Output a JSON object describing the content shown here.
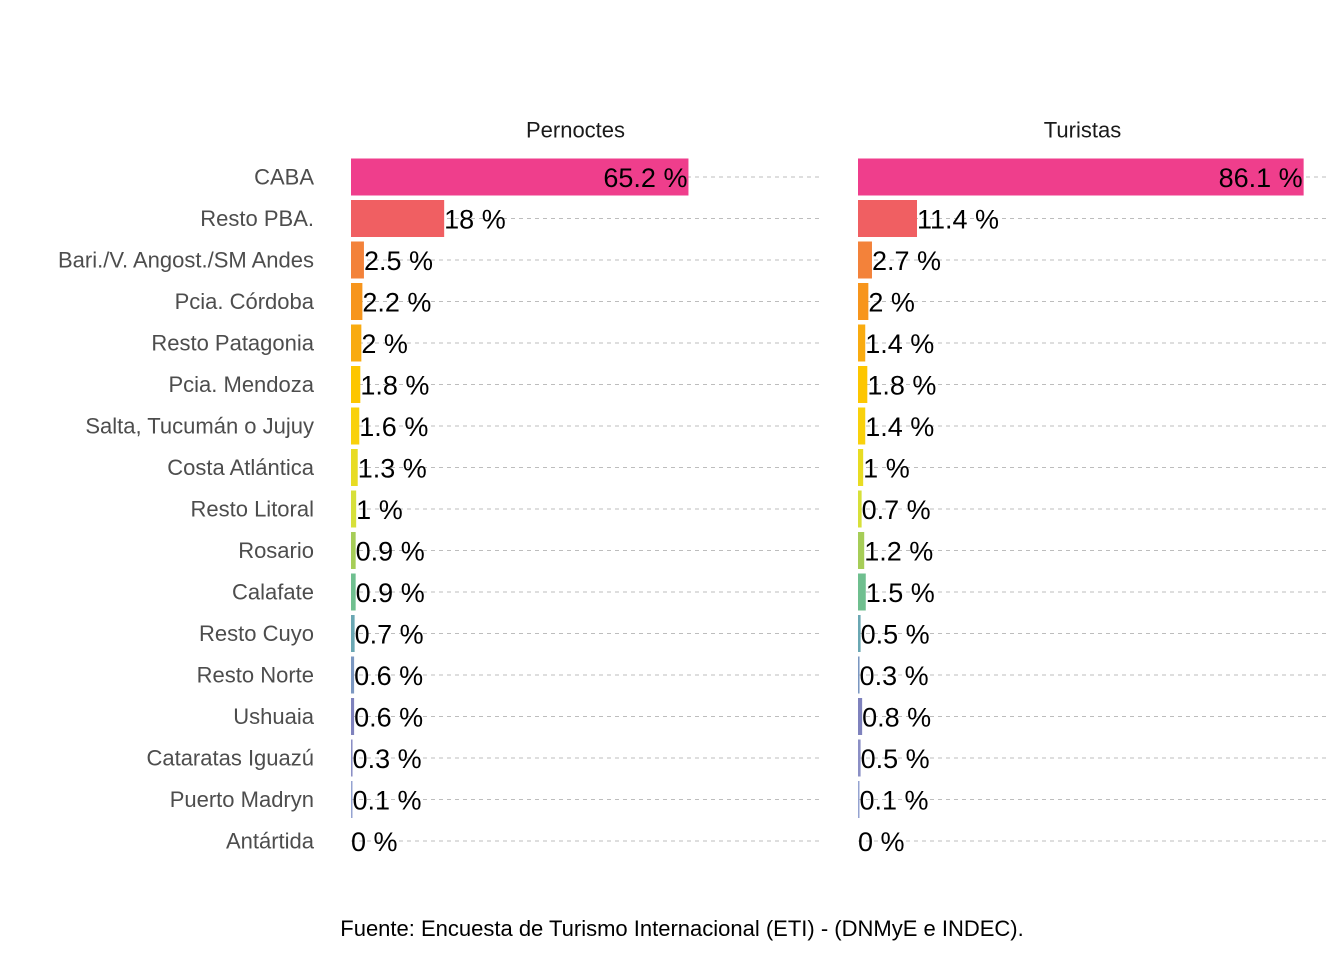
{
  "caption": "Fuente: Encuesta de Turismo Internacional (ETI) - (DNMyE e INDEC).",
  "chart_data": {
    "type": "bar",
    "orientation": "horizontal",
    "unit_suffix": " %",
    "grid": "dashed horizontal",
    "categories": [
      "CABA",
      "Resto PBA.",
      "Bari./V. Angost./SM Andes",
      "Pcia. Córdoba",
      "Resto Patagonia",
      "Pcia. Mendoza",
      "Salta, Tucumán o Jujuy",
      "Costa Atlántica",
      "Resto Litoral",
      "Rosario",
      "Calafate",
      "Resto Cuyo",
      "Resto Norte",
      "Ushuaia",
      "Cataratas Iguazú",
      "Puerto Madryn",
      "Antártida"
    ],
    "colors": [
      "#ef3e8c",
      "#f05f62",
      "#f3823a",
      "#f7951c",
      "#f9ab10",
      "#fdc600",
      "#f9d10c",
      "#e8dc23",
      "#d7e03a",
      "#a6cd57",
      "#6fbf8f",
      "#6aa7b3",
      "#7b97c1",
      "#7f82bd",
      "#8b8fc5",
      "#95a3d1",
      "#a3b8dc"
    ],
    "panels": [
      {
        "title": "Pernoctes",
        "values": [
          65.2,
          18,
          2.5,
          2.2,
          2,
          1.8,
          1.6,
          1.3,
          1,
          0.9,
          0.9,
          0.7,
          0.6,
          0.6,
          0.3,
          0.1,
          0
        ],
        "labels": [
          "65.2 %",
          "18 %",
          "2.5 %",
          "2.2 %",
          "2 %",
          "1.8 %",
          "1.6 %",
          "1.3 %",
          "1 %",
          "0.9 %",
          "0.9 %",
          "0.7 %",
          "0.6 %",
          "0.6 %",
          "0.3 %",
          "0.1 %",
          "0 %"
        ],
        "xlim": [
          0,
          91
        ]
      },
      {
        "title": "Turistas",
        "values": [
          86.1,
          11.4,
          2.7,
          2,
          1.4,
          1.8,
          1.4,
          1,
          0.7,
          1.2,
          1.5,
          0.5,
          0.3,
          0.8,
          0.5,
          0.1,
          0
        ],
        "labels": [
          "86.1 %",
          "11.4 %",
          "2.7 %",
          "2 %",
          "1.4 %",
          "1.8 %",
          "1.4 %",
          "1 %",
          "0.7 %",
          "1.2 %",
          "1.5 %",
          "0.5 %",
          "0.3 %",
          "0.8 %",
          "0.5 %",
          "0.1 %",
          "0 %"
        ],
        "xlim": [
          0,
          91
        ]
      }
    ]
  }
}
